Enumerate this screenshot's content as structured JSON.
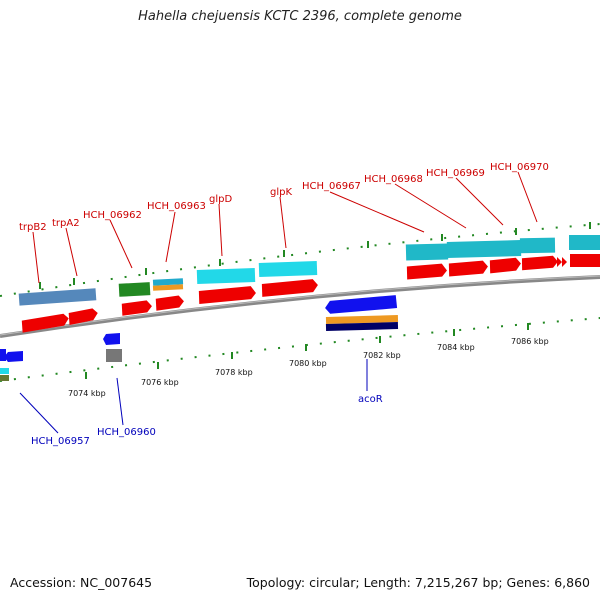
{
  "title": "Hahella chejuensis KCTC 2396, complete genome",
  "footer": {
    "accession": "Accession: NC_007645",
    "info": "Topology: circular; Length: 7,215,267 bp; Genes: 6,860"
  },
  "scale_ticks": [
    "7074 kbp",
    "7076 kbp",
    "7078 kbp",
    "7080 kbp",
    "7082 kbp",
    "7084 kbp",
    "7086 kbp"
  ],
  "forward_genes": [
    "trpB2",
    "trpA2",
    "HCH_06962",
    "HCH_06963",
    "glpD",
    "glpK",
    "HCH_06967",
    "HCH_06968",
    "HCH_06969",
    "HCH_06970"
  ],
  "reverse_genes": [
    "acoR",
    "HCH_06960",
    "HCH_06957"
  ],
  "colors": {
    "forward_label": "#cc0000",
    "reverse_label": "#0000bb",
    "cds": "#ee0000",
    "gene_cyan": "#22d8e8",
    "gene_teal": "#20b8c8",
    "gene_steel": "#5588bb",
    "gene_green": "#228822",
    "gene_blue": "#1111ee",
    "gene_orange": "#ee9922",
    "gene_navy": "#000066",
    "gene_gray": "#777777",
    "tick_green": "#228822",
    "backbone": "#888888"
  }
}
